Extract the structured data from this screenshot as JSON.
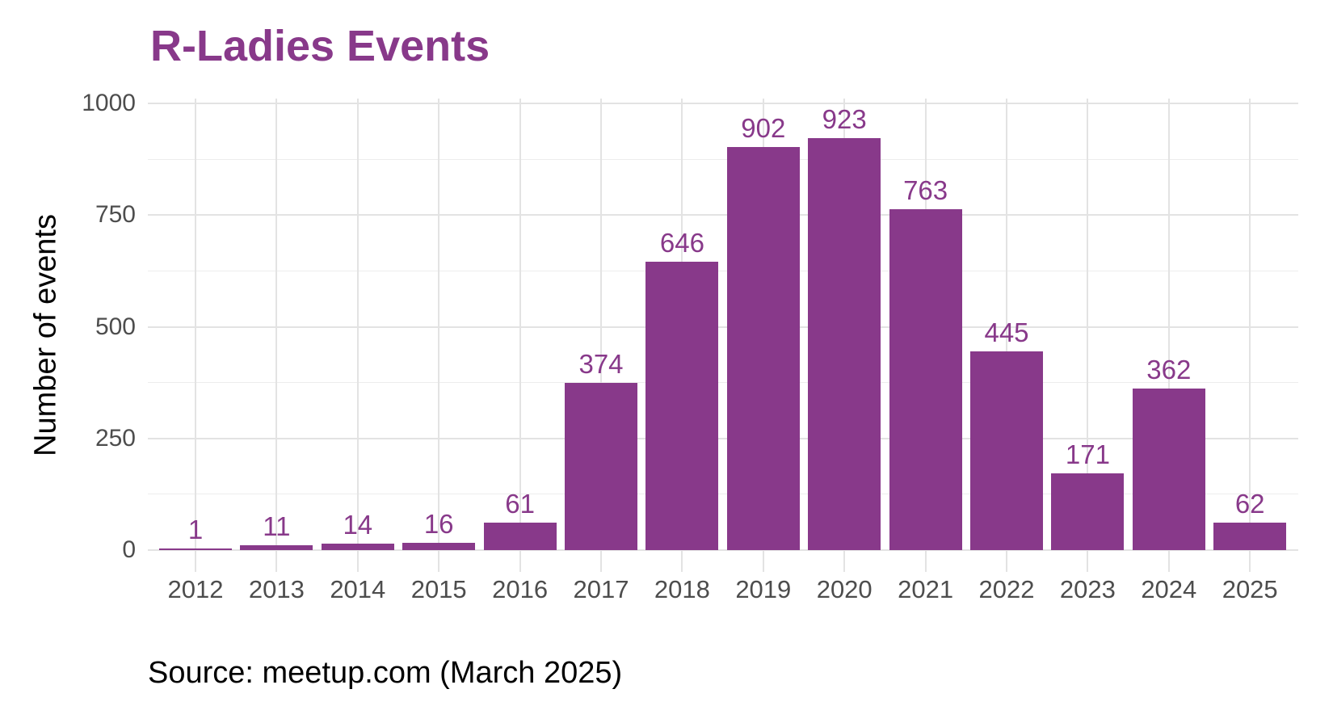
{
  "caption": "Source: meetup.com (March 2025)",
  "chart_data": {
    "type": "bar",
    "title": "R-Ladies Events",
    "categories": [
      "2012",
      "2013",
      "2014",
      "2015",
      "2016",
      "2017",
      "2018",
      "2019",
      "2020",
      "2021",
      "2022",
      "2023",
      "2024",
      "2025"
    ],
    "values": [
      1,
      11,
      14,
      16,
      61,
      374,
      646,
      902,
      923,
      763,
      445,
      171,
      362,
      62
    ],
    "xlabel": "",
    "ylabel": "Number of events",
    "yticks": [
      0,
      250,
      500,
      750,
      1000
    ],
    "yminorticks": [
      125,
      375,
      625,
      875
    ],
    "ylim": [
      0,
      1000
    ],
    "grid": {
      "horizontal": "major and minor",
      "vertical": "major only"
    },
    "legend": "none",
    "value_labels": true,
    "colors": {
      "bar": "#88398A",
      "value_label": "#88398A",
      "title": "#88398A",
      "axis_text": "#4D4D4D",
      "text": "#000000",
      "grid_major": "#E3E3E3",
      "grid_minor": "#EDEDED",
      "background": "#FFFFFF"
    }
  }
}
